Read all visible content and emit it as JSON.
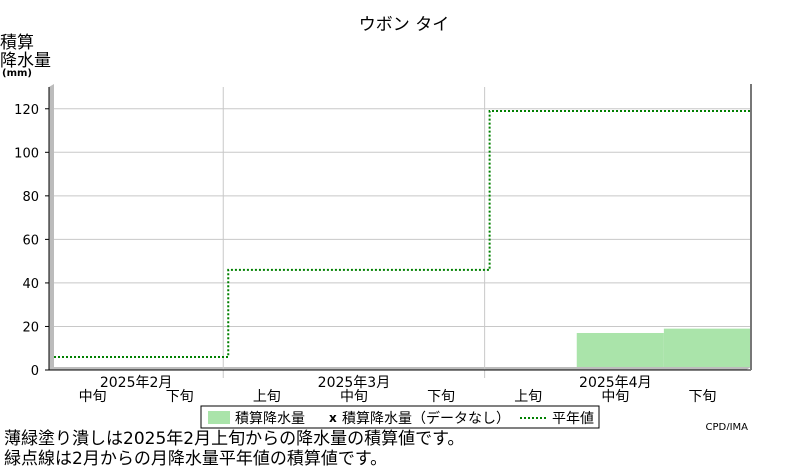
{
  "chart_data": {
    "type": "area",
    "title": "ウボン タイ",
    "ylabel_lines": [
      "積算",
      "降水量",
      "(mm)"
    ],
    "ylim": [
      0,
      130
    ],
    "yticks": [
      0,
      20,
      40,
      60,
      80,
      100,
      120
    ],
    "grid": true,
    "dekads": [
      "中旬",
      "下旬",
      "上旬",
      "中旬",
      "下旬",
      "上旬",
      "中旬",
      "下旬"
    ],
    "months": [
      {
        "label": "2025年2月",
        "first_dekad": 0,
        "last_dekad": 1
      },
      {
        "label": "2025年3月",
        "first_dekad": 2,
        "last_dekad": 4
      },
      {
        "label": "2025年4月",
        "first_dekad": 5,
        "last_dekad": 7
      }
    ],
    "series": [
      {
        "name": "積算降水量",
        "style": "filled-bar",
        "color": "#aae4aa",
        "values": [
          1,
          1,
          1,
          1,
          1,
          1,
          17,
          19
        ]
      },
      {
        "name": "平年値",
        "style": "dotted-step",
        "color": "#008000",
        "values": [
          6,
          6,
          46,
          46,
          46,
          119,
          119,
          119
        ]
      }
    ],
    "legend": {
      "placement": "bottom-center",
      "items": [
        {
          "marker": "box",
          "label": "積算降水量"
        },
        {
          "marker": "x",
          "label": "積算降水量（データなし）"
        },
        {
          "marker": "dotted",
          "label": "平年値"
        }
      ]
    },
    "credit": "CPD/JMA"
  },
  "notes": [
    "薄緑塗り潰しは2025年2月上旬からの降水量の積算値です。",
    "緑点線は2月からの月降水量平年値の積算値です。"
  ]
}
